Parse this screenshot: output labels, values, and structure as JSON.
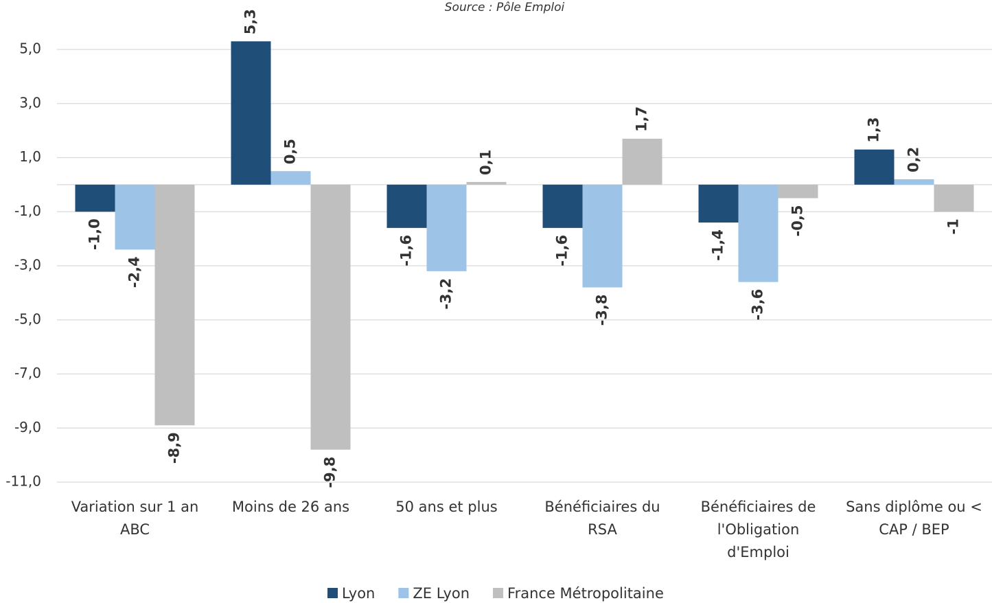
{
  "chart_data": {
    "type": "bar",
    "subtitle": "Source : Pôle Emploi",
    "categories": [
      "Variation sur 1 an ABC",
      "Moins de 26 ans",
      "50 ans et plus",
      "Bénéficiaires du RSA",
      "Bénéficiaires de l'Obligation d'Emploi",
      "Sans diplôme ou < CAP / BEP"
    ],
    "series": [
      {
        "name": "Lyon",
        "color": "#1f4e79",
        "values": [
          -1.0,
          5.3,
          -1.6,
          -1.6,
          -1.4,
          1.3
        ],
        "value_labels": [
          "-1,0",
          "5,3",
          "-1,6",
          "-1,6",
          "-1,4",
          "1,3"
        ]
      },
      {
        "name": "ZE Lyon",
        "color": "#9dc3e6",
        "values": [
          -2.4,
          0.5,
          -3.2,
          -3.8,
          -3.6,
          0.2
        ],
        "value_labels": [
          "-2,4",
          "0,5",
          "-3,2",
          "-3,8",
          "-3,6",
          "0,2"
        ]
      },
      {
        "name": "France Métropolitaine",
        "color": "#bfbfbf",
        "values": [
          -8.9,
          -9.8,
          0.1,
          1.7,
          -0.5,
          -1
        ],
        "value_labels": [
          "-8,9",
          "-9,8",
          "0,1",
          "1,7",
          "-0,5",
          "-1"
        ]
      }
    ],
    "ylim": [
      -11,
      6
    ],
    "yticks": [
      {
        "value": 5,
        "label": "5,0"
      },
      {
        "value": 3,
        "label": "3,0"
      },
      {
        "value": 1,
        "label": "1,0"
      },
      {
        "value": -1,
        "label": "-1,0"
      },
      {
        "value": -3,
        "label": "-3,0"
      },
      {
        "value": -5,
        "label": "-5,0"
      },
      {
        "value": -7,
        "label": "-7,0"
      },
      {
        "value": -9,
        "label": "-9,0"
      },
      {
        "value": -11,
        "label": "-11,0"
      }
    ],
    "grid": true,
    "legend": "bottom"
  }
}
